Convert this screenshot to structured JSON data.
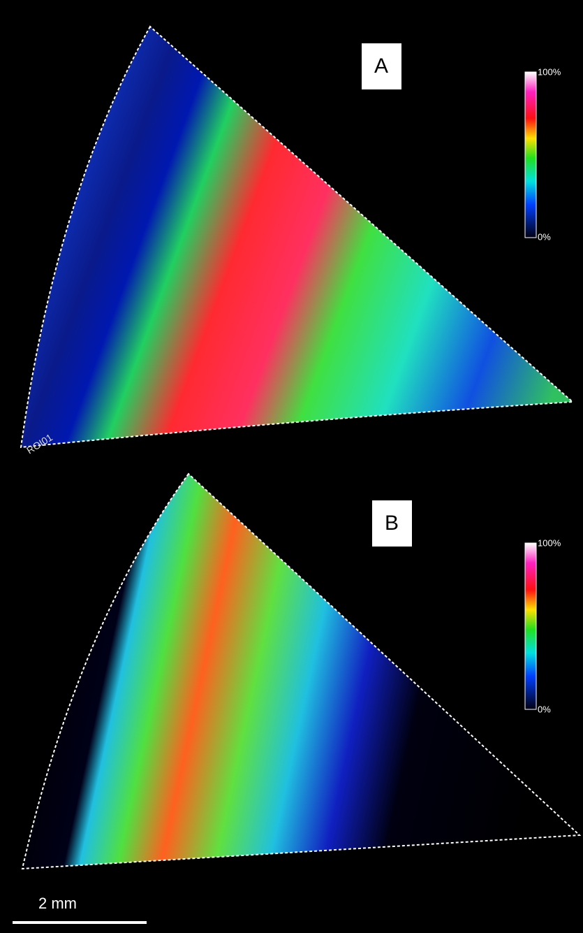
{
  "panels": [
    {
      "label": "A",
      "colorbar_max": "100%",
      "colorbar_min": "0%",
      "roi": "ROI01"
    },
    {
      "label": "B",
      "colorbar_max": "100%",
      "colorbar_min": "0%"
    }
  ],
  "scale_bar": "2 mm"
}
